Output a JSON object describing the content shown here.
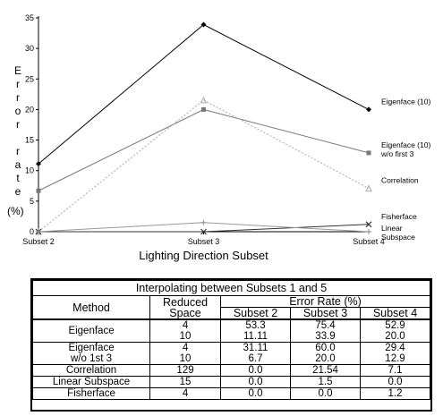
{
  "chart_data": {
    "type": "line",
    "title": "",
    "xlabel": "Lighting Direction Subset",
    "ylabel_letters": [
      "E",
      "r",
      "r",
      "o",
      "r",
      "",
      "r",
      "a",
      "t",
      "e"
    ],
    "ylabel_unit": "(%)",
    "categories": [
      "Subset 2",
      "Subset 3",
      "Subset 4"
    ],
    "ylim": [
      0,
      35
    ],
    "yticks": [
      "0",
      "5",
      "10",
      "15",
      "20",
      "25",
      "30",
      "35"
    ],
    "series": [
      {
        "name": "Eigenface (10)",
        "legend_lines": [
          "Eigenface (10)"
        ],
        "values": [
          11.11,
          33.9,
          20.0
        ],
        "color": "#000000",
        "marker": "diamond",
        "dash": ""
      },
      {
        "name": "Eigenface (10) w/o first 3",
        "legend_lines": [
          "Eigenface (10)",
          "w/o first 3"
        ],
        "values": [
          6.7,
          20.0,
          12.9
        ],
        "color": "#777777",
        "marker": "square",
        "dash": ""
      },
      {
        "name": "Correlation",
        "legend_lines": [
          "Correlation"
        ],
        "values": [
          0.0,
          21.54,
          7.1
        ],
        "color": "#aaaaaa",
        "marker": "triangle",
        "dash": "2,2"
      },
      {
        "name": "Fisherface",
        "legend_lines": [
          "Fisherface"
        ],
        "values": [
          0.0,
          0.0,
          1.2
        ],
        "color": "#333333",
        "marker": "x",
        "dash": ""
      },
      {
        "name": "Linear Subspace",
        "legend_lines": [
          "Linear",
          "Subspace"
        ],
        "values": [
          0.0,
          1.5,
          0.0
        ],
        "color": "#999999",
        "marker": "cross",
        "dash": ""
      }
    ]
  },
  "table": {
    "title": "Interpolating between Subsets 1 and 5",
    "headers": {
      "method": "Method",
      "space_line1": "Reduced",
      "space_line2": "Space",
      "error_group": "Error Rate (%)",
      "subsets": [
        "Subset 2",
        "Subset 3",
        "Subset 4"
      ]
    },
    "rows": [
      {
        "method": [
          "Eigenface"
        ],
        "space": [
          "4",
          "10"
        ],
        "s2": [
          "53.3",
          "11.11"
        ],
        "s3": [
          "75.4",
          "33.9"
        ],
        "s4": [
          "52.9",
          "20.0"
        ]
      },
      {
        "method": [
          "Eigenface",
          "w/o 1st 3"
        ],
        "space": [
          "4",
          "10"
        ],
        "s2": [
          "31.11",
          "6.7"
        ],
        "s3": [
          "60.0",
          "20.0"
        ],
        "s4": [
          "29.4",
          "12.9"
        ]
      },
      {
        "method": [
          "Correlation"
        ],
        "space": [
          "129"
        ],
        "s2": [
          "0.0"
        ],
        "s3": [
          "21.54"
        ],
        "s4": [
          "7.1"
        ]
      },
      {
        "method": [
          "Linear Subspace"
        ],
        "space": [
          "15"
        ],
        "s2": [
          "0.0"
        ],
        "s3": [
          "1.5"
        ],
        "s4": [
          "0.0"
        ]
      },
      {
        "method": [
          "Fisherface"
        ],
        "space": [
          "4"
        ],
        "s2": [
          "0.0"
        ],
        "s3": [
          "0.0"
        ],
        "s4": [
          "1.2"
        ]
      }
    ]
  }
}
